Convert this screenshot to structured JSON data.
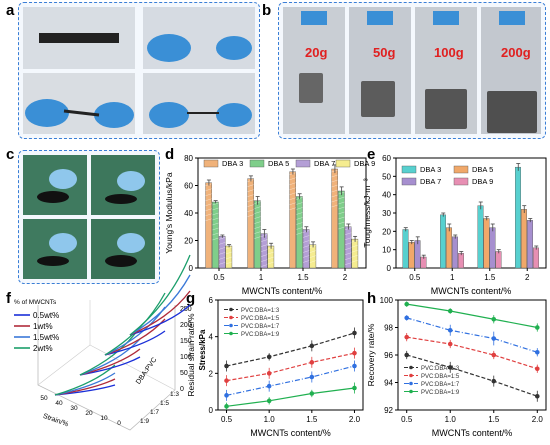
{
  "panels": [
    "a",
    "b",
    "c",
    "d",
    "e",
    "f",
    "g",
    "h"
  ],
  "photos": {
    "a_desc": "",
    "b_weights": [
      "20g",
      "50g",
      "100g",
      "200g"
    ]
  },
  "colors": {
    "dba3": "#f0b27a",
    "dba5": "#7fce8a",
    "dba7": "#b49fd6",
    "dba9": "#f5ec90",
    "dba9_e": "#e78fb3",
    "dba3_e": "#57d0cf",
    "dba5_e": "#f0a86a",
    "dba7_e": "#a68fcf",
    "line13": "#333333",
    "line15": "#e04040",
    "line17": "#3070e0",
    "line19": "#20b050",
    "f_05": "#1a2fd8",
    "f_1": "#b02b3a",
    "f_15": "#3a78d8",
    "f_2": "#1b9e6b"
  },
  "chart_data": [
    {
      "id": "d",
      "type": "bar",
      "ylabel": "Young's Modulus/kPa",
      "xlabel": "MWCNTs content/%",
      "categories": [
        "0.5",
        "1",
        "1.5",
        "2"
      ],
      "ylim": [
        0,
        80
      ],
      "yticks": [
        0,
        20,
        40,
        60,
        80
      ],
      "series": [
        {
          "name": "DBA 3",
          "values": [
            62,
            65,
            70,
            72
          ],
          "err": [
            2,
            2,
            2,
            3
          ]
        },
        {
          "name": "DBA 5",
          "values": [
            48,
            49,
            52,
            56
          ],
          "err": [
            1,
            3,
            2,
            3
          ]
        },
        {
          "name": "DBA 7",
          "values": [
            23,
            25,
            28,
            30
          ],
          "err": [
            1,
            3,
            2,
            2
          ]
        },
        {
          "name": "DBA 9",
          "values": [
            16,
            16,
            17,
            21
          ],
          "err": [
            1,
            2,
            2,
            2
          ]
        }
      ],
      "legend": "top"
    },
    {
      "id": "e",
      "type": "bar",
      "ylabel": "Toughness/kJ·m⁻³",
      "xlabel": "MWCNTs content/%",
      "categories": [
        "0.5",
        "1",
        "1.5",
        "2"
      ],
      "ylim": [
        0,
        60
      ],
      "yticks": [
        0,
        10,
        20,
        30,
        40,
        50,
        60
      ],
      "series": [
        {
          "name": "DBA 3",
          "values": [
            21,
            29,
            34,
            55
          ],
          "err": [
            1,
            1,
            2,
            2
          ]
        },
        {
          "name": "DBA 5",
          "values": [
            14,
            22,
            27,
            32
          ],
          "err": [
            1,
            2,
            1,
            2
          ]
        },
        {
          "name": "DBA 7",
          "values": [
            15,
            17,
            22,
            26
          ],
          "err": [
            2,
            1,
            2,
            1
          ]
        },
        {
          "name": "DBA 9",
          "values": [
            6,
            8,
            9,
            11
          ],
          "err": [
            1,
            1,
            1,
            1
          ]
        }
      ],
      "legend": "top-left"
    },
    {
      "id": "f",
      "type": "line",
      "legend_title": "% of MWCNTs",
      "series_names": [
        "0.5wt%",
        "1wt%",
        "1.5wt%",
        "2wt%"
      ],
      "zlabel": "Stress/kPa",
      "zticks": [
        "0",
        "50",
        "100",
        "150",
        "200",
        "250"
      ],
      "xlabel": "Strain/%",
      "xticks": [
        "50",
        "40",
        "30",
        "20",
        "10",
        "0"
      ],
      "ylabel": "DBA:PVC",
      "yticks": [
        "1:9",
        "1:7",
        "1:5",
        "1:3"
      ]
    },
    {
      "id": "g",
      "type": "line",
      "ylabel": "Residual strain rate/%",
      "xlabel": "MWCNTs content/%",
      "x": [
        0.5,
        1.0,
        1.5,
        2.0
      ],
      "xticks": [
        "0.5",
        "1.0",
        "1.5",
        "2.0"
      ],
      "ylim": [
        0,
        6
      ],
      "yticks": [
        0,
        2,
        4,
        6
      ],
      "series": [
        {
          "name": "PVC:DBA=1:3",
          "values": [
            2.4,
            2.9,
            3.5,
            4.2
          ],
          "err": [
            0.3,
            0.2,
            0.3,
            0.3
          ]
        },
        {
          "name": "PVC:DBA=1:5",
          "values": [
            1.6,
            2.0,
            2.6,
            3.1
          ],
          "err": [
            0.3,
            0.3,
            0.3,
            0.3
          ]
        },
        {
          "name": "PVC:DBA=1:7",
          "values": [
            0.8,
            1.3,
            1.8,
            2.4
          ],
          "err": [
            0.3,
            0.3,
            0.3,
            0.3
          ]
        },
        {
          "name": "PVC:DBA=1:9",
          "values": [
            0.2,
            0.5,
            0.9,
            1.2
          ],
          "err": [
            0.2,
            0.2,
            0.2,
            0.3
          ]
        }
      ],
      "legend": "top-left"
    },
    {
      "id": "h",
      "type": "line",
      "ylabel": "Recovery rate/%",
      "xlabel": "MWCNTs content/%",
      "x": [
        0.5,
        1.0,
        1.5,
        2.0
      ],
      "xticks": [
        "0.5",
        "1.0",
        "1.5",
        "2.0"
      ],
      "ylim": [
        92,
        100
      ],
      "yticks": [
        92,
        94,
        96,
        98,
        100
      ],
      "series": [
        {
          "name": "PVC:DBA=1:3",
          "values": [
            96.0,
            95.1,
            94.1,
            93.0
          ],
          "err": [
            0.3,
            0.4,
            0.4,
            0.4
          ]
        },
        {
          "name": "PVC:DBA=1:5",
          "values": [
            97.3,
            96.8,
            96.0,
            95.0
          ],
          "err": [
            0.3,
            0.3,
            0.3,
            0.3
          ]
        },
        {
          "name": "PVC:DBA=1:7",
          "values": [
            98.7,
            97.8,
            97.2,
            96.2
          ],
          "err": [
            0.2,
            0.4,
            0.5,
            0.3
          ]
        },
        {
          "name": "PVC:DBA=1:9",
          "values": [
            99.7,
            99.2,
            98.6,
            98.0
          ],
          "err": [
            0.2,
            0.2,
            0.3,
            0.3
          ]
        }
      ],
      "legend": "bottom-left"
    }
  ]
}
